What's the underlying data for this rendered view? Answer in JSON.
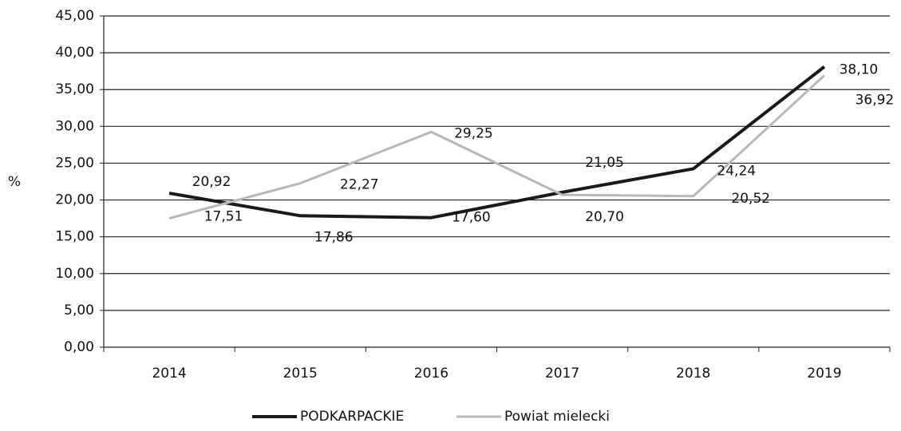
{
  "chart_data": {
    "type": "line",
    "axis_label_y": "%",
    "categories": [
      "2014",
      "2015",
      "2016",
      "2017",
      "2018",
      "2019"
    ],
    "series": [
      {
        "name": "PODKARPACKIE",
        "color": "#1a1a1a",
        "values": [
          20.92,
          17.86,
          17.6,
          21.05,
          24.24,
          38.1
        ],
        "value_labels": [
          "20,92",
          "17,86",
          "17,60",
          "21,05",
          "24,24",
          "38,10"
        ]
      },
      {
        "name": "Powiat mielecki",
        "color": "#b8b8b8",
        "values": [
          17.51,
          22.27,
          29.25,
          20.7,
          20.52,
          36.92
        ],
        "value_labels": [
          "17,51",
          "22,27",
          "29,25",
          "20,70",
          "20,52",
          "36,92"
        ]
      }
    ],
    "ylim": [
      0,
      45
    ],
    "yticks": [
      {
        "value": 0,
        "label": "0,00"
      },
      {
        "value": 5,
        "label": "5,00"
      },
      {
        "value": 10,
        "label": "10,00"
      },
      {
        "value": 15,
        "label": "15,00"
      },
      {
        "value": 20,
        "label": "20,00"
      },
      {
        "value": 25,
        "label": "25,00"
      },
      {
        "value": 30,
        "label": "30,00"
      },
      {
        "value": 35,
        "label": "35,00"
      },
      {
        "value": 40,
        "label": "40,00"
      },
      {
        "value": 45,
        "label": "45,00"
      }
    ],
    "grid": true,
    "legend": "bottom"
  }
}
